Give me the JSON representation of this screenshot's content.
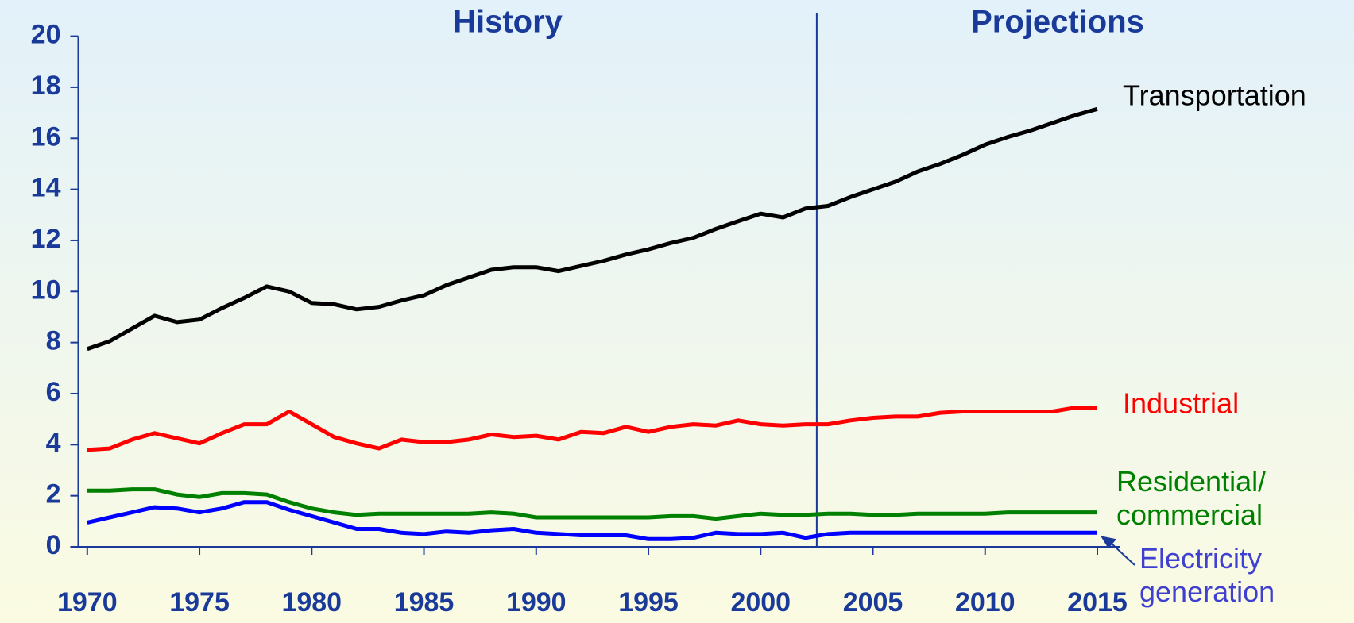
{
  "chart_data": {
    "type": "line",
    "annotations": {
      "history": "History",
      "projections": "Projections",
      "divider_x": 2002.5
    },
    "x": [
      1970,
      1971,
      1972,
      1973,
      1974,
      1975,
      1976,
      1977,
      1978,
      1979,
      1980,
      1981,
      1982,
      1983,
      1984,
      1985,
      1986,
      1987,
      1988,
      1989,
      1990,
      1991,
      1992,
      1993,
      1994,
      1995,
      1996,
      1997,
      1998,
      1999,
      2000,
      2001,
      2002,
      2003,
      2004,
      2005,
      2006,
      2007,
      2008,
      2009,
      2010,
      2011,
      2012,
      2013,
      2014,
      2015
    ],
    "series": [
      {
        "name": "Transportation",
        "color": "#000000",
        "values": [
          7.75,
          8.05,
          8.55,
          9.05,
          8.8,
          8.9,
          9.35,
          9.75,
          10.2,
          10.0,
          9.55,
          9.5,
          9.3,
          9.4,
          9.65,
          9.85,
          10.25,
          10.55,
          10.85,
          10.95,
          10.95,
          10.8,
          11.0,
          11.2,
          11.45,
          11.65,
          11.9,
          12.1,
          12.45,
          12.75,
          13.05,
          12.9,
          13.25,
          13.35,
          13.7,
          14.0,
          14.3,
          14.7,
          15.0,
          15.35,
          15.75,
          16.05,
          16.3,
          16.6,
          16.9,
          17.15
        ]
      },
      {
        "name": "Industrial",
        "color": "#ff0000",
        "values": [
          3.8,
          3.85,
          4.2,
          4.45,
          4.25,
          4.05,
          4.45,
          4.8,
          4.8,
          5.3,
          4.8,
          4.3,
          4.05,
          3.85,
          4.2,
          4.1,
          4.1,
          4.2,
          4.4,
          4.3,
          4.35,
          4.2,
          4.5,
          4.45,
          4.7,
          4.5,
          4.7,
          4.8,
          4.75,
          4.95,
          4.8,
          4.75,
          4.8,
          4.8,
          4.95,
          5.05,
          5.1,
          5.1,
          5.25,
          5.3,
          5.3,
          5.3,
          5.3,
          5.3,
          5.45,
          5.45
        ]
      },
      {
        "name": "Residential/\ncommercial",
        "color": "#008000",
        "values": [
          2.2,
          2.2,
          2.25,
          2.25,
          2.05,
          1.95,
          2.1,
          2.1,
          2.05,
          1.75,
          1.5,
          1.35,
          1.25,
          1.3,
          1.3,
          1.3,
          1.3,
          1.3,
          1.35,
          1.3,
          1.15,
          1.15,
          1.15,
          1.15,
          1.15,
          1.15,
          1.2,
          1.2,
          1.1,
          1.2,
          1.3,
          1.25,
          1.25,
          1.3,
          1.3,
          1.25,
          1.25,
          1.3,
          1.3,
          1.3,
          1.3,
          1.35,
          1.35,
          1.35,
          1.35,
          1.35
        ]
      },
      {
        "name": "Electricity\ngeneration",
        "color": "#0000ff",
        "values": [
          0.95,
          1.15,
          1.35,
          1.55,
          1.5,
          1.35,
          1.5,
          1.75,
          1.75,
          1.45,
          1.2,
          0.95,
          0.7,
          0.7,
          0.55,
          0.5,
          0.6,
          0.55,
          0.65,
          0.7,
          0.55,
          0.5,
          0.45,
          0.45,
          0.45,
          0.3,
          0.3,
          0.35,
          0.55,
          0.5,
          0.5,
          0.55,
          0.35,
          0.5,
          0.55,
          0.55,
          0.55,
          0.55,
          0.55,
          0.55,
          0.55,
          0.55,
          0.55,
          0.55,
          0.55,
          0.55
        ]
      }
    ],
    "xlim": [
      1969.6,
      2016
    ],
    "xticks": [
      1970,
      1975,
      1980,
      1985,
      1990,
      1995,
      2000,
      2005,
      2010,
      2015
    ],
    "ylim": [
      0,
      20
    ],
    "yticks": [
      0,
      2,
      4,
      6,
      8,
      10,
      12,
      14,
      16,
      18,
      20
    ]
  }
}
